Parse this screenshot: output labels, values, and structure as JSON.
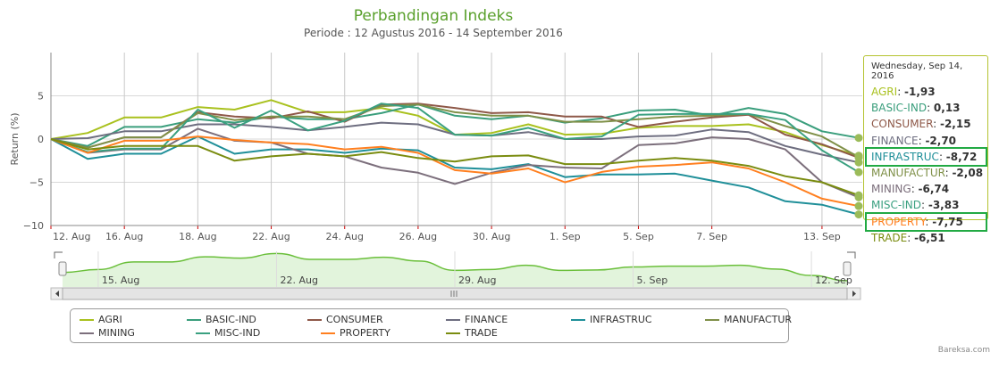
{
  "chart_data": {
    "type": "line",
    "title": "Perbandingan Indeks",
    "subtitle": "Periode : 12 Agustus 2016 - 14 September 2016",
    "ylabel": "Return (%)",
    "xlabel": "",
    "ylim": [
      -10,
      10
    ],
    "yticks": [
      -10,
      -5,
      0,
      5
    ],
    "grid": true,
    "legend_position": "bottom",
    "x": [
      "12 Aug",
      "15 Aug",
      "16 Aug",
      "17 Aug",
      "18 Aug",
      "19 Aug",
      "22 Aug",
      "23 Aug",
      "24 Aug",
      "25 Aug",
      "26 Aug",
      "29 Aug",
      "30 Aug",
      "31 Aug",
      "1 Sep",
      "2 Sep",
      "5 Sep",
      "6 Sep",
      "7 Sep",
      "8 Sep",
      "9 Sep",
      "13 Sep",
      "14 Sep"
    ],
    "xtick_labels": [
      {
        "index": 0,
        "label": "12. Aug"
      },
      {
        "index": 2,
        "label": "16. Aug"
      },
      {
        "index": 4,
        "label": "18. Aug"
      },
      {
        "index": 6,
        "label": "22. Aug"
      },
      {
        "index": 8,
        "label": "24. Aug"
      },
      {
        "index": 10,
        "label": "26. Aug"
      },
      {
        "index": 12,
        "label": "30. Aug"
      },
      {
        "index": 14,
        "label": "1. Sep"
      },
      {
        "index": 16,
        "label": "5. Sep"
      },
      {
        "index": 18,
        "label": "7. Sep"
      },
      {
        "index": 21,
        "label": "13. Sep"
      }
    ],
    "series": [
      {
        "name": "AGRI",
        "color": "#a9c11e",
        "values": [
          0,
          0.7,
          2.5,
          2.5,
          3.7,
          3.4,
          4.5,
          3.1,
          3.1,
          3.6,
          2.7,
          0.5,
          0.7,
          1.7,
          0.5,
          0.6,
          1.3,
          1.5,
          1.5,
          1.7,
          0.8,
          -0.7,
          -1.93
        ]
      },
      {
        "name": "BASIC-IND",
        "color": "#3a9e7c",
        "values": [
          0,
          -0.8,
          1.4,
          1.4,
          2.3,
          1.9,
          2.6,
          2.3,
          2.3,
          3.0,
          4.0,
          2.7,
          2.3,
          2.7,
          1.9,
          2.4,
          3.3,
          3.4,
          2.7,
          3.6,
          2.9,
          0.9,
          0.13
        ]
      },
      {
        "name": "CONSUMER",
        "color": "#8e5848",
        "values": [
          0,
          -1.0,
          0.2,
          0.2,
          3.1,
          2.6,
          2.4,
          3.2,
          2.0,
          4.0,
          4.1,
          3.6,
          3.0,
          3.1,
          2.6,
          2.6,
          1.4,
          2.0,
          2.5,
          2.8,
          0.5,
          -0.6,
          -2.15
        ]
      },
      {
        "name": "FINANCE",
        "color": "#6e6e80",
        "values": [
          0,
          0.1,
          0.9,
          0.9,
          1.7,
          1.7,
          1.4,
          1.0,
          1.4,
          1.9,
          1.7,
          0.5,
          0.4,
          0.8,
          0.0,
          0.0,
          0.3,
          0.4,
          1.1,
          0.8,
          -0.8,
          -1.8,
          -2.7
        ]
      },
      {
        "name": "INFRASTRUC",
        "color": "#1f8f99",
        "values": [
          0,
          -2.3,
          -1.7,
          -1.7,
          0.3,
          -1.7,
          -1.2,
          -1.2,
          -1.6,
          -1.1,
          -1.3,
          -3.3,
          -3.5,
          -2.9,
          -4.4,
          -4.1,
          -4.1,
          -4.0,
          -4.8,
          -5.6,
          -7.2,
          -7.6,
          -8.72
        ]
      },
      {
        "name": "MANUFACTUR",
        "color": "#7f9048",
        "values": [
          0,
          -1.0,
          0.2,
          0.2,
          3.0,
          2.2,
          2.6,
          2.6,
          2.3,
          3.8,
          4.0,
          3.1,
          2.7,
          2.7,
          2.0,
          2.0,
          2.3,
          2.6,
          2.7,
          2.9,
          1.5,
          0.3,
          -2.08
        ]
      },
      {
        "name": "MINING",
        "color": "#7c6f7c",
        "values": [
          0,
          -1.6,
          -1.2,
          -1.2,
          1.2,
          -0.2,
          -0.4,
          -1.7,
          -2.0,
          -3.3,
          -3.9,
          -5.2,
          -3.9,
          -3.0,
          -3.3,
          -3.4,
          -0.7,
          -0.5,
          0.2,
          0.0,
          -1.2,
          -5.0,
          -6.74
        ]
      },
      {
        "name": "MISC-IND",
        "color": "#3aa080",
        "values": [
          0,
          -1.5,
          -1.1,
          -1.1,
          3.4,
          1.3,
          3.3,
          1.0,
          2.1,
          4.1,
          3.6,
          0.5,
          0.4,
          1.3,
          0.0,
          0.3,
          2.8,
          2.9,
          2.9,
          2.9,
          2.2,
          -1.3,
          -3.83
        ]
      },
      {
        "name": "PROPERTY",
        "color": "#ff7f1f",
        "values": [
          0,
          -1.6,
          -0.2,
          -0.2,
          0.3,
          -0.1,
          -0.4,
          -0.6,
          -1.2,
          -0.9,
          -1.6,
          -3.6,
          -4.0,
          -3.4,
          -5.0,
          -3.8,
          -3.2,
          -3.0,
          -2.7,
          -3.4,
          -5.0,
          -6.9,
          -7.75
        ]
      },
      {
        "name": "TRADE",
        "color": "#7a8c10",
        "values": [
          0,
          -1.2,
          -0.8,
          -0.8,
          -0.8,
          -2.5,
          -2.0,
          -1.7,
          -2.0,
          -1.5,
          -2.2,
          -2.6,
          -2.0,
          -1.9,
          -2.9,
          -2.9,
          -2.5,
          -2.2,
          -2.5,
          -3.1,
          -4.3,
          -5.0,
          -6.51
        ]
      }
    ],
    "navigator": {
      "tick_labels": [
        {
          "index": 1,
          "label": "15. Aug"
        },
        {
          "index": 6,
          "label": "22. Aug"
        },
        {
          "index": 11,
          "label": "29. Aug"
        },
        {
          "index": 16,
          "label": "5. Sep"
        },
        {
          "index": 21,
          "label": "12. Sep"
        }
      ],
      "color": "#6abf3a"
    },
    "tooltip": {
      "date": "Wednesday, Sep 14, 2016",
      "rows": [
        {
          "name": "AGRI",
          "value": "-1,93",
          "highlighted": false
        },
        {
          "name": "BASIC-IND",
          "value": "0,13",
          "highlighted": false
        },
        {
          "name": "CONSUMER",
          "value": "-2,15",
          "highlighted": false
        },
        {
          "name": "FINANCE",
          "value": "-2,70",
          "highlighted": false
        },
        {
          "name": "INFRASTRUC",
          "value": "-8,72",
          "highlighted": true
        },
        {
          "name": "MANUFACTUR",
          "value": "-2,08",
          "highlighted": false
        },
        {
          "name": "MINING",
          "value": "-6,74",
          "highlighted": false
        },
        {
          "name": "MISC-IND",
          "value": "-3,83",
          "highlighted": false
        },
        {
          "name": "PROPERTY",
          "value": "-7,75",
          "highlighted": true
        },
        {
          "name": "TRADE",
          "value": "-6,51",
          "highlighted": false
        }
      ],
      "highlight_color": "#22aa44"
    },
    "credit": "Bareksa.com"
  }
}
